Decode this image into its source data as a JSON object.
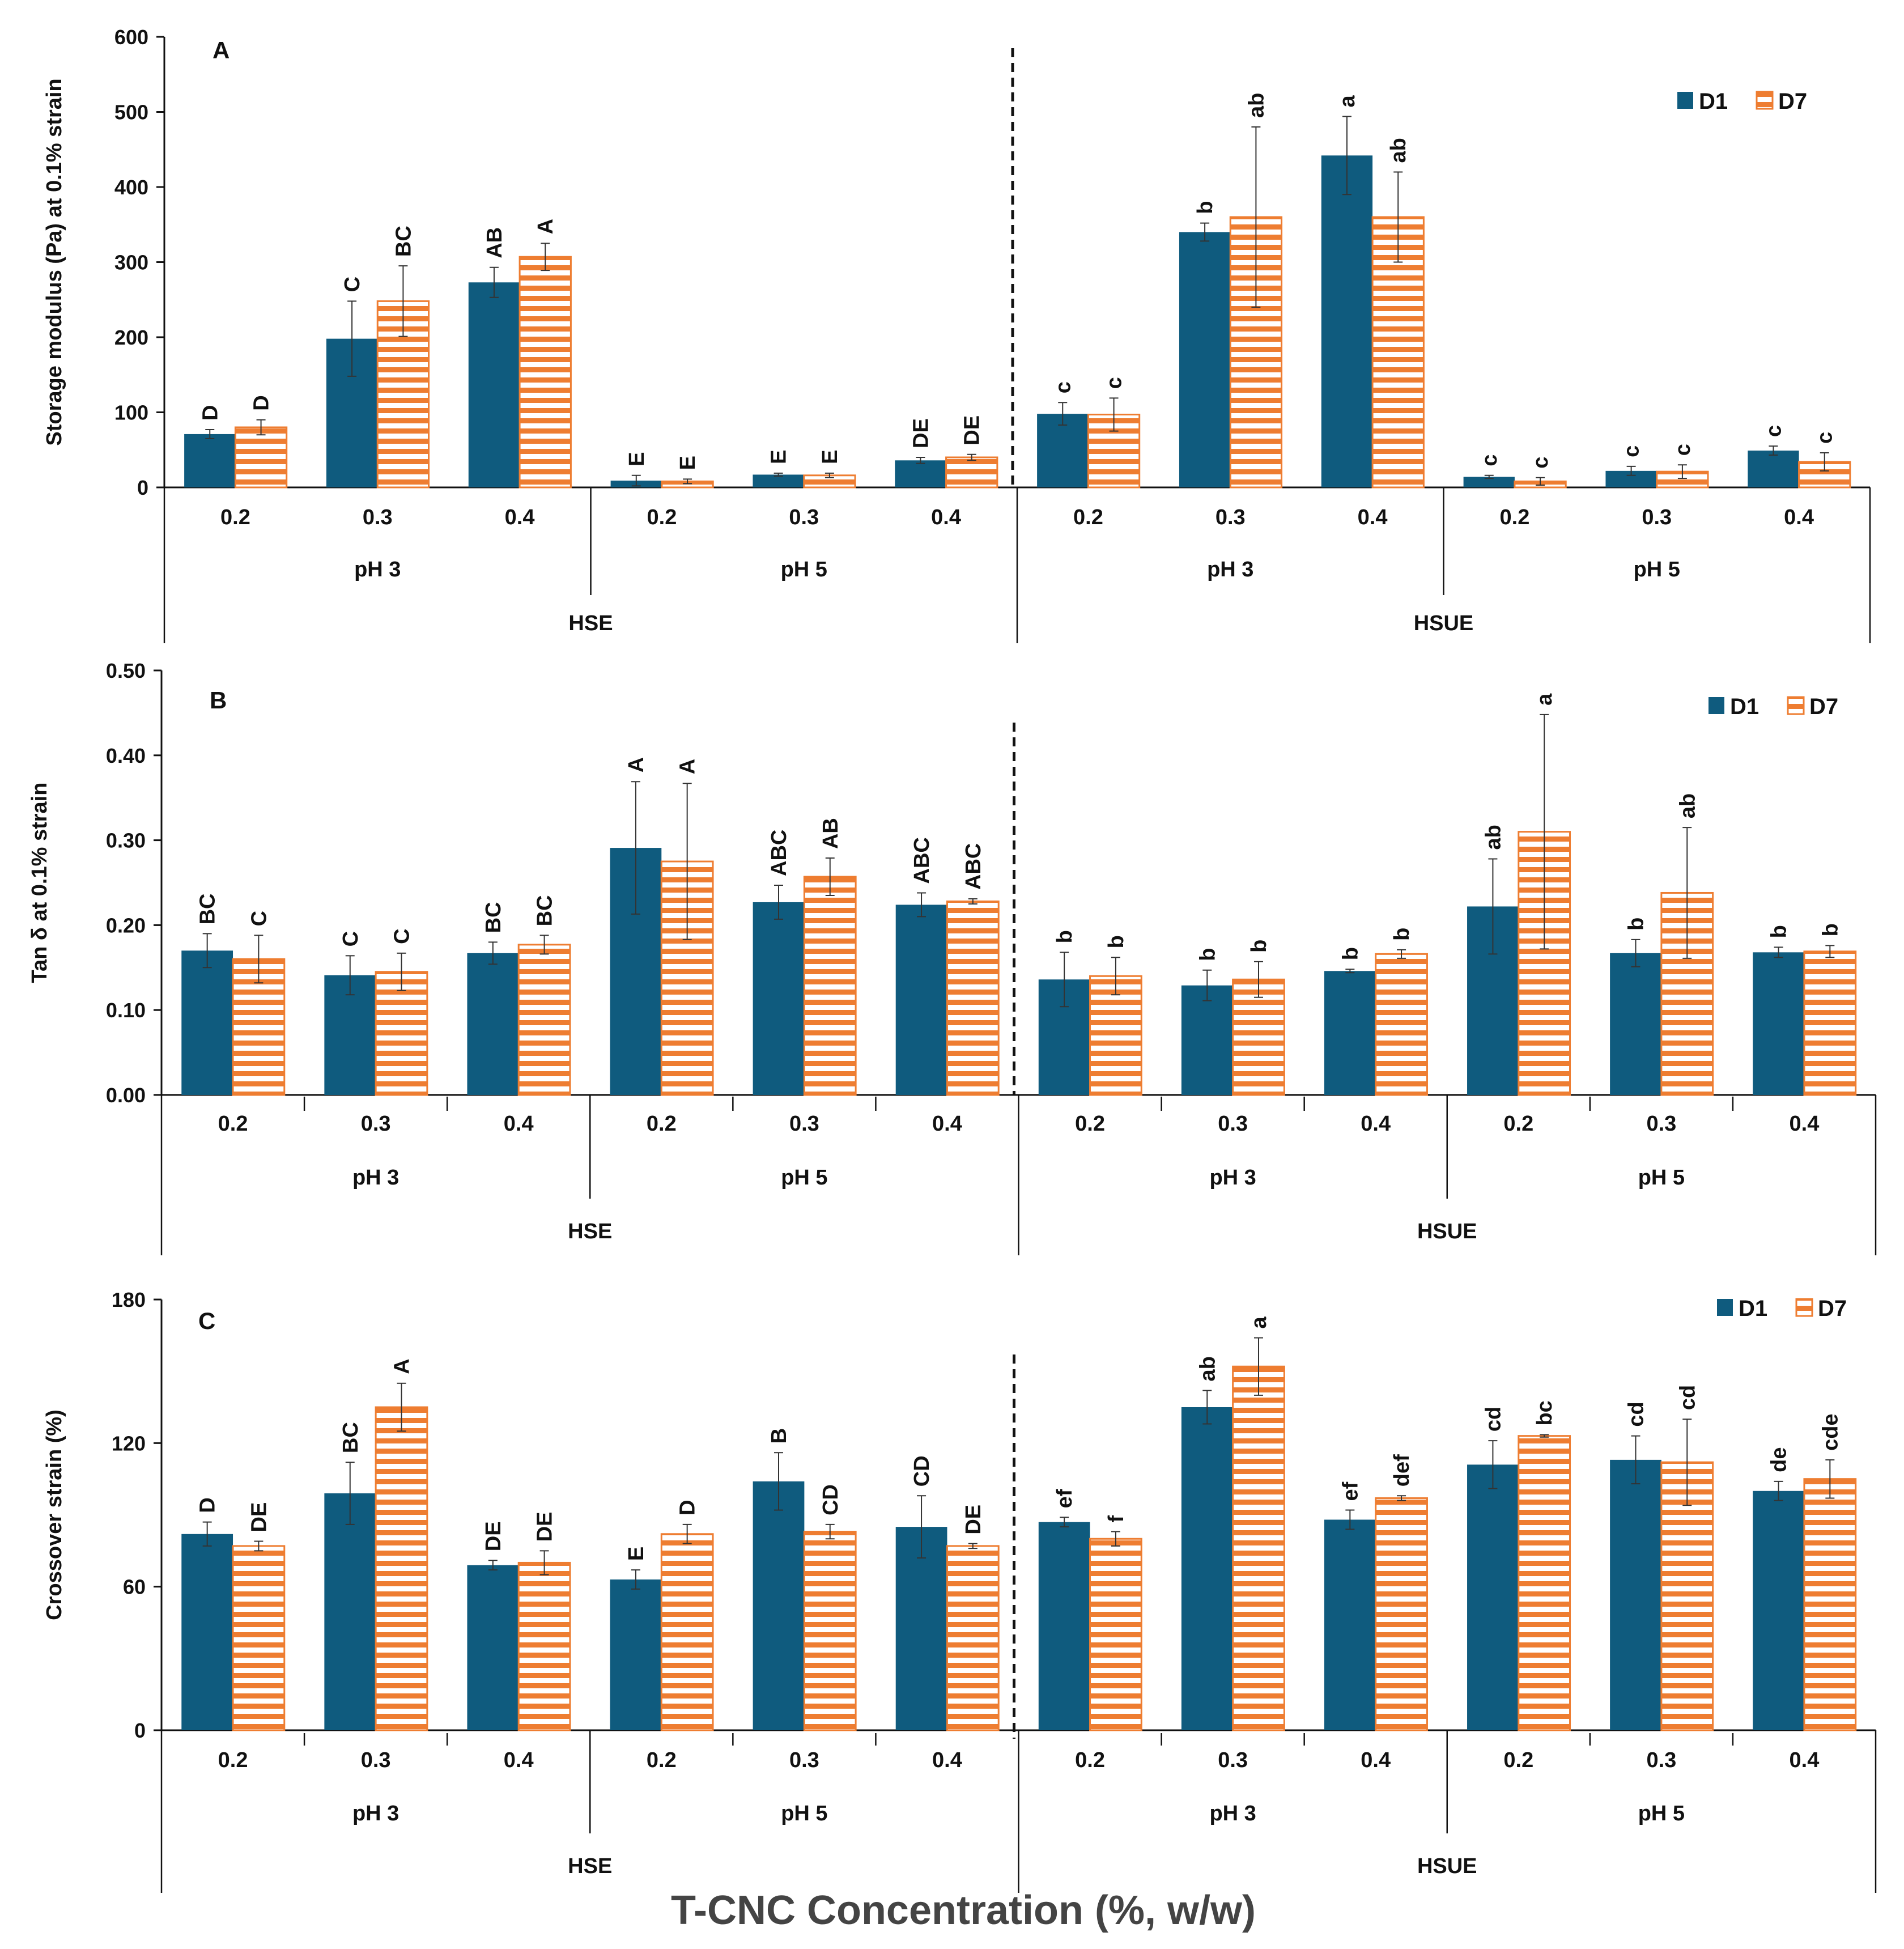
{
  "figure": {
    "x_title": "T-CNC Concentration (%, w/w)"
  },
  "colors": {
    "d1": "#0f5b7e",
    "d7_stripe": "#ee7d31",
    "d7_fill": "#ffffff"
  },
  "chart_data": [
    {
      "type": "bar",
      "panel": "A",
      "ylabel": "Storage modulus (Pa) at 0.1% strain",
      "ylim": [
        0,
        600
      ],
      "yticks": [
        0,
        100,
        200,
        300,
        400,
        500,
        600
      ],
      "ytick_labels": [
        "0",
        "100",
        "200",
        "300",
        "400",
        "500",
        "600"
      ],
      "divider_x_categories": 6,
      "legend": {
        "position": "top-right",
        "entries": [
          "D1",
          "D7"
        ]
      },
      "categories": [
        "0.2",
        "0.3",
        "0.4",
        "0.2",
        "0.3",
        "0.4",
        "0.2",
        "0.3",
        "0.4",
        "0.2",
        "0.3",
        "0.4"
      ],
      "ph_groups": [
        "pH 3",
        "pH 5",
        "pH 3",
        "pH 5"
      ],
      "method_groups": [
        "HSE",
        "HSUE"
      ],
      "series": [
        {
          "name": "D1",
          "values": [
            71,
            198,
            273,
            9,
            17,
            36,
            98,
            340,
            442,
            14,
            22,
            49
          ],
          "errors": [
            6,
            50,
            20,
            7,
            2,
            4,
            15,
            12,
            52,
            2,
            6,
            6
          ],
          "letters": [
            "D",
            "C",
            "AB",
            "E",
            "E",
            "DE",
            "c",
            "b",
            "a",
            "c",
            "c",
            "c"
          ]
        },
        {
          "name": "D7",
          "values": [
            80,
            248,
            307,
            8,
            16,
            40,
            97,
            360,
            360,
            8,
            21,
            34
          ],
          "errors": [
            10,
            47,
            18,
            3,
            3,
            4,
            22,
            120,
            60,
            5,
            9,
            12
          ],
          "letters": [
            "D",
            "BC",
            "A",
            "E",
            "E",
            "DE",
            "c",
            "ab",
            "ab",
            "c",
            "c",
            "c"
          ]
        }
      ]
    },
    {
      "type": "bar",
      "panel": "B",
      "ylabel": "Tan δ at 0.1% strain",
      "ylim": [
        0,
        0.5
      ],
      "yticks": [
        0,
        0.1,
        0.2,
        0.3,
        0.4,
        0.5
      ],
      "ytick_labels": [
        "0.00",
        "0.10",
        "0.20",
        "0.30",
        "0.40",
        "0.50"
      ],
      "divider_x_categories": 6,
      "legend": {
        "position": "top-right",
        "entries": [
          "D1",
          "D7"
        ]
      },
      "categories": [
        "0.2",
        "0.3",
        "0.4",
        "0.2",
        "0.3",
        "0.4",
        "0.2",
        "0.3",
        "0.4",
        "0.2",
        "0.3",
        "0.4"
      ],
      "ph_groups": [
        "pH 3",
        "pH 5",
        "pH 3",
        "pH 5"
      ],
      "method_groups": [
        "HSE",
        "HSUE"
      ],
      "series": [
        {
          "name": "D1",
          "values": [
            0.17,
            0.141,
            0.167,
            0.291,
            0.227,
            0.224,
            0.136,
            0.129,
            0.146,
            0.222,
            0.167,
            0.168
          ],
          "errors": [
            0.02,
            0.023,
            0.013,
            0.078,
            0.02,
            0.014,
            0.032,
            0.018,
            0.002,
            0.056,
            0.016,
            0.006
          ],
          "letters": [
            "BC",
            "C",
            "BC",
            "A",
            "ABC",
            "ABC",
            "b",
            "b",
            "b",
            "ab",
            "b",
            "b"
          ]
        },
        {
          "name": "D7",
          "values": [
            0.16,
            0.145,
            0.177,
            0.275,
            0.257,
            0.228,
            0.14,
            0.136,
            0.166,
            0.31,
            0.238,
            0.169
          ],
          "errors": [
            0.028,
            0.022,
            0.011,
            0.092,
            0.022,
            0.003,
            0.022,
            0.021,
            0.005,
            0.138,
            0.077,
            0.007
          ],
          "letters": [
            "C",
            "C",
            "BC",
            "A",
            "AB",
            "ABC",
            "b",
            "b",
            "b",
            "a",
            "ab",
            "b"
          ]
        }
      ]
    },
    {
      "type": "bar",
      "panel": "C",
      "ylabel": "Crossover strain (%)",
      "ylim": [
        0,
        180
      ],
      "yticks": [
        0,
        60,
        120,
        180
      ],
      "ytick_labels": [
        "0",
        "60",
        "120",
        "180"
      ],
      "divider_x_categories": 6,
      "legend": {
        "position": "top-right",
        "entries": [
          "D1",
          "D7"
        ]
      },
      "categories": [
        "0.2",
        "0.3",
        "0.4",
        "0.2",
        "0.3",
        "0.4",
        "0.2",
        "0.3",
        "0.4",
        "0.2",
        "0.3",
        "0.4"
      ],
      "ph_groups": [
        "pH 3",
        "pH 5",
        "pH 3",
        "pH 5"
      ],
      "method_groups": [
        "HSE",
        "HSUE"
      ],
      "series": [
        {
          "name": "D1",
          "values": [
            82,
            99,
            69,
            63,
            104,
            85,
            87,
            135,
            88,
            111,
            113,
            100
          ],
          "errors": [
            5,
            13,
            2,
            4,
            12,
            13,
            2,
            7,
            4,
            10,
            10,
            4
          ],
          "letters": [
            "D",
            "BC",
            "DE",
            "E",
            "B",
            "CD",
            "ef",
            "ab",
            "ef",
            "cd",
            "cd",
            "de"
          ]
        },
        {
          "name": "D7",
          "values": [
            77,
            135,
            70,
            82,
            83,
            77,
            80,
            152,
            97,
            123,
            112,
            105
          ],
          "errors": [
            2,
            10,
            5,
            4,
            3,
            1,
            3,
            12,
            1,
            0.5,
            18,
            8
          ],
          "letters": [
            "DE",
            "A",
            "DE",
            "D",
            "CD",
            "DE",
            "f",
            "a",
            "def",
            "bc",
            "cd",
            "cde"
          ]
        }
      ]
    }
  ]
}
